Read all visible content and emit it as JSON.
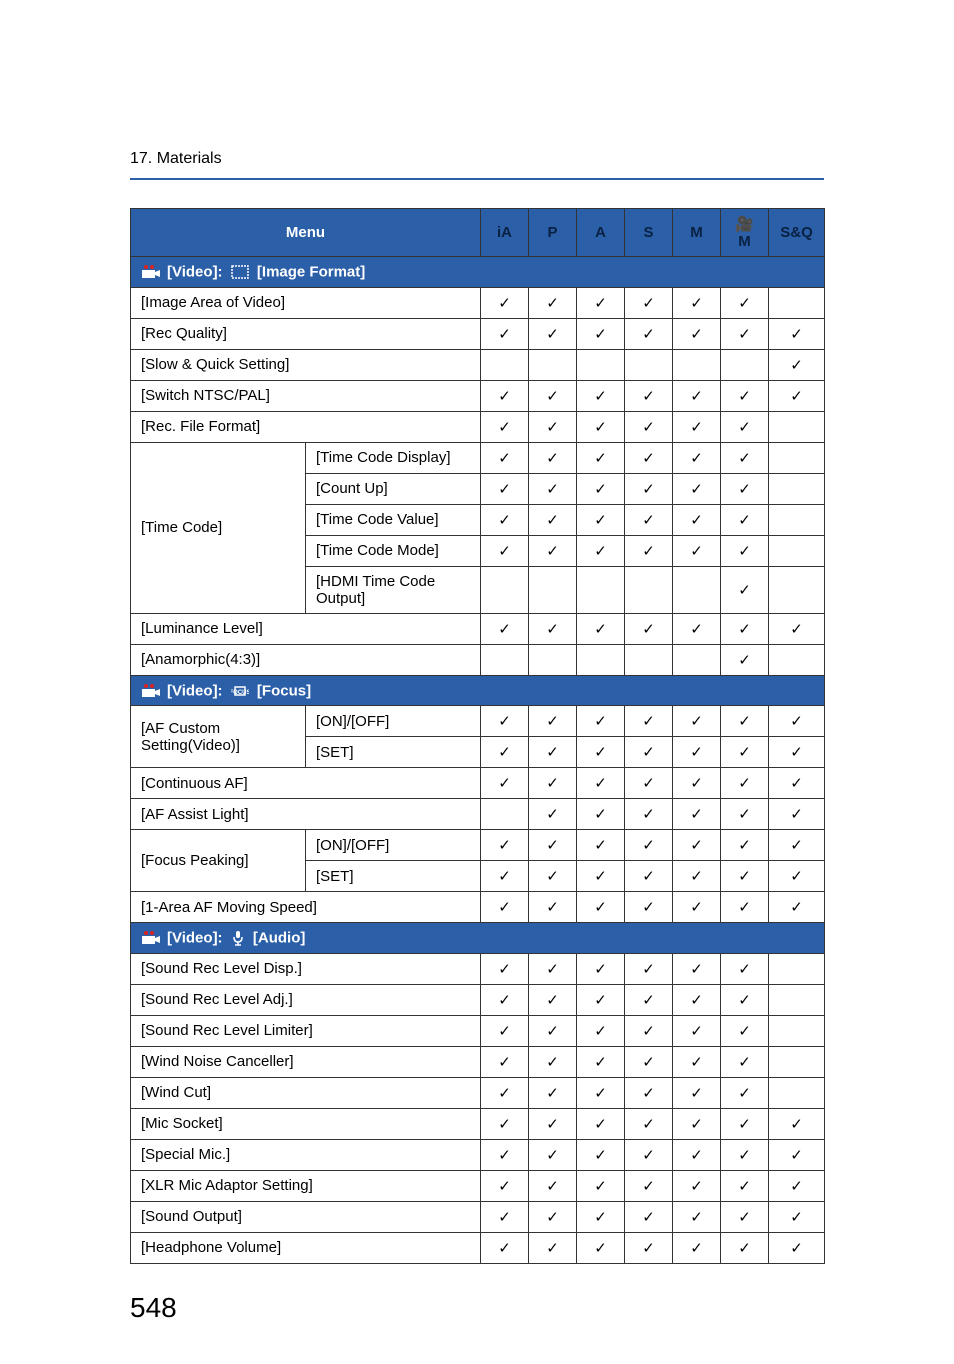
{
  "chapter": "17. Materials",
  "page_number": "548",
  "columns": {
    "menu": "Menu",
    "modes": [
      "iA",
      "P",
      "A",
      "S",
      "M",
      "🎥M",
      "S&Q"
    ]
  },
  "sections": [
    {
      "icon": "video",
      "title": "[Video]:",
      "subicon": "image-format",
      "subtitle": "[Image Format]",
      "rows": [
        {
          "label": "[Image Area of Video]",
          "sub": null,
          "checks": [
            "✓",
            "✓",
            "✓",
            "✓",
            "✓",
            "✓",
            ""
          ]
        },
        {
          "label": "[Rec Quality]",
          "sub": null,
          "checks": [
            "✓",
            "✓",
            "✓",
            "✓",
            "✓",
            "✓",
            "✓"
          ]
        },
        {
          "label": "[Slow & Quick Setting]",
          "sub": null,
          "checks": [
            "",
            "",
            "",
            "",
            "",
            "",
            "✓"
          ]
        },
        {
          "label": "[Switch NTSC/PAL]",
          "sub": null,
          "checks": [
            "✓",
            "✓",
            "✓",
            "✓",
            "✓",
            "✓",
            "✓"
          ]
        },
        {
          "label": "[Rec. File Format]",
          "sub": null,
          "checks": [
            "✓",
            "✓",
            "✓",
            "✓",
            "✓",
            "✓",
            ""
          ]
        },
        {
          "label": "[Time Code]",
          "rowspan": 5,
          "sub": "[Time Code Display]",
          "checks": [
            "✓",
            "✓",
            "✓",
            "✓",
            "✓",
            "✓",
            ""
          ]
        },
        {
          "label": null,
          "sub": "[Count Up]",
          "checks": [
            "✓",
            "✓",
            "✓",
            "✓",
            "✓",
            "✓",
            ""
          ]
        },
        {
          "label": null,
          "sub": "[Time Code Value]",
          "checks": [
            "✓",
            "✓",
            "✓",
            "✓",
            "✓",
            "✓",
            ""
          ]
        },
        {
          "label": null,
          "sub": "[Time Code Mode]",
          "checks": [
            "✓",
            "✓",
            "✓",
            "✓",
            "✓",
            "✓",
            ""
          ]
        },
        {
          "label": null,
          "sub": "[HDMI Time Code Output]",
          "checks": [
            "",
            "",
            "",
            "",
            "",
            "✓",
            ""
          ]
        },
        {
          "label": "[Luminance Level]",
          "sub": null,
          "checks": [
            "✓",
            "✓",
            "✓",
            "✓",
            "✓",
            "✓",
            "✓"
          ]
        },
        {
          "label": "[Anamorphic(4:3)]",
          "sub": null,
          "checks": [
            "",
            "",
            "",
            "",
            "",
            "✓",
            ""
          ]
        }
      ]
    },
    {
      "icon": "video",
      "title": "[Video]:",
      "subicon": "focus",
      "subtitle": "[Focus]",
      "rows": [
        {
          "label": "[AF Custom Setting(Video)]",
          "rowspan": 2,
          "sub": "[ON]/[OFF]",
          "checks": [
            "✓",
            "✓",
            "✓",
            "✓",
            "✓",
            "✓",
            "✓"
          ]
        },
        {
          "label": null,
          "sub": "[SET]",
          "checks": [
            "✓",
            "✓",
            "✓",
            "✓",
            "✓",
            "✓",
            "✓"
          ]
        },
        {
          "label": "[Continuous AF]",
          "sub": null,
          "checks": [
            "✓",
            "✓",
            "✓",
            "✓",
            "✓",
            "✓",
            "✓"
          ]
        },
        {
          "label": "[AF Assist Light]",
          "sub": null,
          "checks": [
            "",
            "✓",
            "✓",
            "✓",
            "✓",
            "✓",
            "✓"
          ]
        },
        {
          "label": "[Focus Peaking]",
          "rowspan": 2,
          "sub": "[ON]/[OFF]",
          "checks": [
            "✓",
            "✓",
            "✓",
            "✓",
            "✓",
            "✓",
            "✓"
          ]
        },
        {
          "label": null,
          "sub": "[SET]",
          "checks": [
            "✓",
            "✓",
            "✓",
            "✓",
            "✓",
            "✓",
            "✓"
          ]
        },
        {
          "label": "[1-Area AF Moving Speed]",
          "sub": null,
          "checks": [
            "✓",
            "✓",
            "✓",
            "✓",
            "✓",
            "✓",
            "✓"
          ]
        }
      ]
    },
    {
      "icon": "video",
      "title": "[Video]:",
      "subicon": "audio",
      "subtitle": "[Audio]",
      "rows": [
        {
          "label": "[Sound Rec Level Disp.]",
          "sub": null,
          "checks": [
            "✓",
            "✓",
            "✓",
            "✓",
            "✓",
            "✓",
            ""
          ]
        },
        {
          "label": "[Sound Rec Level Adj.]",
          "sub": null,
          "checks": [
            "✓",
            "✓",
            "✓",
            "✓",
            "✓",
            "✓",
            ""
          ]
        },
        {
          "label": "[Sound Rec Level Limiter]",
          "sub": null,
          "checks": [
            "✓",
            "✓",
            "✓",
            "✓",
            "✓",
            "✓",
            ""
          ]
        },
        {
          "label": "[Wind Noise Canceller]",
          "sub": null,
          "checks": [
            "✓",
            "✓",
            "✓",
            "✓",
            "✓",
            "✓",
            ""
          ]
        },
        {
          "label": "[Wind Cut]",
          "sub": null,
          "checks": [
            "✓",
            "✓",
            "✓",
            "✓",
            "✓",
            "✓",
            ""
          ]
        },
        {
          "label": "[Mic Socket]",
          "sub": null,
          "checks": [
            "✓",
            "✓",
            "✓",
            "✓",
            "✓",
            "✓",
            "✓"
          ]
        },
        {
          "label": "[Special Mic.]",
          "sub": null,
          "checks": [
            "✓",
            "✓",
            "✓",
            "✓",
            "✓",
            "✓",
            "✓"
          ]
        },
        {
          "label": "[XLR Mic Adaptor Setting]",
          "sub": null,
          "checks": [
            "✓",
            "✓",
            "✓",
            "✓",
            "✓",
            "✓",
            "✓"
          ]
        },
        {
          "label": "[Sound Output]",
          "sub": null,
          "checks": [
            "✓",
            "✓",
            "✓",
            "✓",
            "✓",
            "✓",
            "✓"
          ]
        },
        {
          "label": "[Headphone Volume]",
          "sub": null,
          "checks": [
            "✓",
            "✓",
            "✓",
            "✓",
            "✓",
            "✓",
            "✓"
          ]
        }
      ]
    }
  ]
}
